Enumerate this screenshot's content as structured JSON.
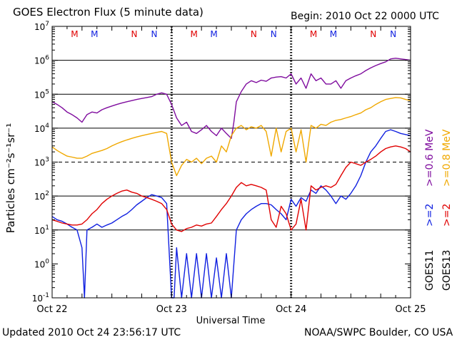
{
  "header": {
    "title": "GOES Electron Flux (5 minute data)",
    "begin": "Begin: 2010 Oct 22 0000 UTC"
  },
  "footer": {
    "updated": "Updated 2010 Oct 24 23:56:17 UTC",
    "credit": "NOAA/SWPC Boulder, CO USA"
  },
  "colors": {
    "goes11_0p6": "#7f0c9e",
    "goes13_0p8": "#f0a800",
    "goes11_2": "#1020e0",
    "goes13_2": "#e00000",
    "marker_red": "#e00000",
    "marker_blue": "#1020e0"
  },
  "chart_data": {
    "type": "line",
    "title": "GOES Electron Flux (5 minute data)",
    "xlabel": "Universal Time",
    "ylabel": "Particles cm⁻²s⁻¹sr⁻¹",
    "y_scale": "log",
    "ylim": [
      0.1,
      10000000
    ],
    "xlim": [
      0,
      72
    ],
    "x_unit": "hours since 2010 Oct 22 0000 UTC",
    "x_ticks": [
      {
        "x": 0,
        "label": "Oct 22"
      },
      {
        "x": 24,
        "label": "Oct 23"
      },
      {
        "x": 48,
        "label": "Oct 24"
      },
      {
        "x": 72,
        "label": "Oct 25"
      }
    ],
    "y_ticks": [
      {
        "base": "10",
        "exp": "-1",
        "value": 0.1
      },
      {
        "base": "10",
        "exp": "0",
        "value": 1
      },
      {
        "base": "10",
        "exp": "1",
        "value": 10
      },
      {
        "base": "10",
        "exp": "2",
        "value": 100
      },
      {
        "base": "10",
        "exp": "3",
        "value": 1000
      },
      {
        "base": "10",
        "exp": "4",
        "value": 10000
      },
      {
        "base": "10",
        "exp": "5",
        "value": 100000
      },
      {
        "base": "10",
        "exp": "6",
        "value": 1000000
      },
      {
        "base": "10",
        "exp": "7",
        "value": 10000000
      }
    ],
    "solid_gridlines": [
      10,
      100,
      10000,
      100000,
      1000000
    ],
    "dashed_gridlines": [
      1000
    ],
    "threshold_line_value": 1000,
    "day_dividers": [
      24,
      48
    ],
    "markers": [
      {
        "x": 4.5,
        "label": "M",
        "color": "red"
      },
      {
        "x": 8.5,
        "label": "M",
        "color": "blue"
      },
      {
        "x": 16.5,
        "label": "N",
        "color": "red"
      },
      {
        "x": 20.5,
        "label": "N",
        "color": "blue"
      },
      {
        "x": 28.5,
        "label": "M",
        "color": "red"
      },
      {
        "x": 32.5,
        "label": "M",
        "color": "blue"
      },
      {
        "x": 40.5,
        "label": "N",
        "color": "red"
      },
      {
        "x": 44.5,
        "label": "N",
        "color": "blue"
      },
      {
        "x": 52.5,
        "label": "M",
        "color": "red"
      },
      {
        "x": 56.5,
        "label": "M",
        "color": "blue"
      },
      {
        "x": 64.5,
        "label": "N",
        "color": "red"
      },
      {
        "x": 68.5,
        "label": "N",
        "color": "blue"
      }
    ],
    "legend": {
      "placement": "right",
      "goes11": "GOES11",
      "goes13": "GOES13",
      "entries": [
        {
          "satellite": "GOES11",
          "label": ">=0.6 MeV",
          "color": "purple"
        },
        {
          "satellite": "GOES13",
          "label": ">=0.8 MeV",
          "color": "orange"
        },
        {
          "satellite": "GOES11",
          "label": ">=2",
          "color": "blue"
        },
        {
          "satellite": "GOES13",
          "label": ">=2",
          "color": "red"
        }
      ]
    },
    "series": [
      {
        "name": ">=0.6 MeV",
        "satellite": "GOES11",
        "color": "purple",
        "x": [
          0,
          1,
          2,
          3,
          4,
          5,
          6,
          7,
          8,
          9,
          10,
          11,
          12,
          13,
          14,
          15,
          16,
          17,
          18,
          19,
          20,
          21,
          22,
          23,
          24,
          25,
          26,
          27,
          28,
          29,
          30,
          31,
          32,
          33,
          34,
          35,
          36,
          36.5,
          37,
          38,
          39,
          40,
          41,
          42,
          43,
          44,
          45,
          46,
          47,
          48,
          49,
          50,
          51,
          52,
          53,
          54,
          55,
          56,
          57,
          58,
          59,
          60,
          61,
          62,
          63,
          64,
          65,
          66,
          67,
          68,
          69,
          70,
          71,
          72
        ],
        "y": [
          60000,
          50000,
          40000,
          30000,
          25000,
          20000,
          15000,
          25000,
          30000,
          28000,
          35000,
          40000,
          45000,
          50000,
          55000,
          60000,
          65000,
          70000,
          75000,
          80000,
          85000,
          100000,
          110000,
          100000,
          50000,
          20000,
          12000,
          15000,
          8000,
          7000,
          9000,
          12000,
          8000,
          6000,
          10000,
          7000,
          5000,
          15000,
          60000,
          120000,
          200000,
          250000,
          220000,
          260000,
          240000,
          300000,
          320000,
          330000,
          300000,
          400000,
          200000,
          300000,
          150000,
          400000,
          250000,
          300000,
          200000,
          200000,
          250000,
          150000,
          250000,
          300000,
          350000,
          400000,
          500000,
          600000,
          700000,
          800000,
          900000,
          1100000,
          1150000,
          1100000,
          1050000,
          1000000
        ]
      },
      {
        "name": ">=0.8 MeV",
        "satellite": "GOES13",
        "color": "orange",
        "x": [
          0,
          1,
          2,
          3,
          4,
          5,
          6,
          7,
          8,
          9,
          10,
          11,
          12,
          13,
          14,
          15,
          16,
          17,
          18,
          19,
          20,
          21,
          22,
          23,
          24,
          25,
          26,
          27,
          28,
          29,
          30,
          31,
          32,
          33,
          34,
          35,
          36,
          37,
          38,
          39,
          40,
          41,
          42,
          43,
          44,
          45,
          46,
          47,
          48,
          49,
          50,
          51,
          52,
          53,
          54,
          55,
          56,
          57,
          58,
          59,
          60,
          61,
          62,
          63,
          64,
          65,
          66,
          67,
          68,
          69,
          70,
          71,
          72
        ],
        "y": [
          2800,
          2200,
          1800,
          1500,
          1400,
          1300,
          1300,
          1500,
          1800,
          2000,
          2200,
          2500,
          3000,
          3500,
          4000,
          4500,
          5000,
          5500,
          6000,
          6500,
          7000,
          7500,
          8000,
          7000,
          1000,
          400,
          800,
          1200,
          1000,
          1300,
          900,
          1300,
          1500,
          1000,
          3000,
          2000,
          6000,
          10000,
          12000,
          9000,
          11000,
          10000,
          12000,
          8000,
          1500,
          10000,
          2000,
          8000,
          10000,
          2000,
          9000,
          1000,
          12000,
          10000,
          13000,
          12000,
          15000,
          17000,
          18000,
          20000,
          22000,
          25000,
          28000,
          35000,
          40000,
          50000,
          60000,
          70000,
          75000,
          80000,
          78000,
          70000,
          65000
        ]
      },
      {
        "name": ">=2",
        "satellite": "GOES11",
        "color": "blue",
        "x": [
          0,
          1,
          2,
          3,
          4,
          5,
          6,
          6.5,
          7,
          8,
          9,
          10,
          11,
          12,
          13,
          14,
          15,
          16,
          17,
          18,
          19,
          20,
          21,
          22,
          23,
          24,
          24.5,
          25,
          26,
          27,
          28,
          29,
          30,
          31,
          32,
          33,
          34,
          35,
          36,
          37,
          38,
          39,
          40,
          41,
          42,
          43,
          44,
          45,
          46,
          47,
          48,
          49,
          50,
          51,
          52,
          53,
          54,
          55,
          56,
          57,
          58,
          59,
          60,
          61,
          62,
          63,
          64,
          65,
          66,
          67,
          68,
          69,
          70,
          71,
          72
        ],
        "y": [
          25,
          20,
          18,
          15,
          12,
          10,
          3,
          0.1,
          10,
          12,
          15,
          12,
          14,
          16,
          20,
          25,
          30,
          40,
          55,
          70,
          90,
          110,
          100,
          90,
          60,
          0.1,
          0.1,
          3,
          0.1,
          2,
          0.1,
          2,
          0.1,
          2,
          0.1,
          1.5,
          0.1,
          2,
          0.1,
          10,
          20,
          30,
          40,
          50,
          60,
          60,
          55,
          40,
          30,
          20,
          80,
          50,
          90,
          70,
          150,
          120,
          200,
          150,
          100,
          60,
          100,
          80,
          120,
          200,
          400,
          1000,
          2000,
          3000,
          5000,
          8000,
          9000,
          8000,
          7000,
          6500,
          6000
        ]
      },
      {
        "name": ">=2",
        "satellite": "GOES13",
        "color": "red",
        "x": [
          0,
          1,
          2,
          3,
          4,
          5,
          6,
          7,
          8,
          9,
          10,
          11,
          12,
          13,
          14,
          15,
          16,
          17,
          18,
          19,
          20,
          21,
          22,
          23,
          24,
          25,
          26,
          27,
          28,
          29,
          30,
          31,
          32,
          33,
          34,
          35,
          36,
          37,
          38,
          39,
          40,
          41,
          42,
          43,
          44,
          45,
          46,
          47,
          48,
          49,
          50,
          51,
          52,
          53,
          54,
          55,
          56,
          57,
          58,
          59,
          60,
          61,
          62,
          63,
          64,
          65,
          66,
          67,
          68,
          69,
          70,
          71,
          72
        ],
        "y": [
          20,
          18,
          16,
          15,
          14,
          14,
          15,
          20,
          30,
          40,
          60,
          80,
          100,
          120,
          140,
          150,
          130,
          120,
          100,
          90,
          80,
          70,
          60,
          40,
          15,
          10,
          9,
          11,
          12,
          14,
          13,
          15,
          16,
          25,
          40,
          60,
          100,
          180,
          250,
          200,
          220,
          200,
          180,
          150,
          20,
          12,
          50,
          30,
          10,
          15,
          80,
          10,
          200,
          150,
          180,
          200,
          180,
          220,
          400,
          700,
          1000,
          900,
          800,
          1000,
          1200,
          1500,
          2000,
          2500,
          2800,
          3000,
          2800,
          2500,
          2000
        ]
      }
    ]
  }
}
